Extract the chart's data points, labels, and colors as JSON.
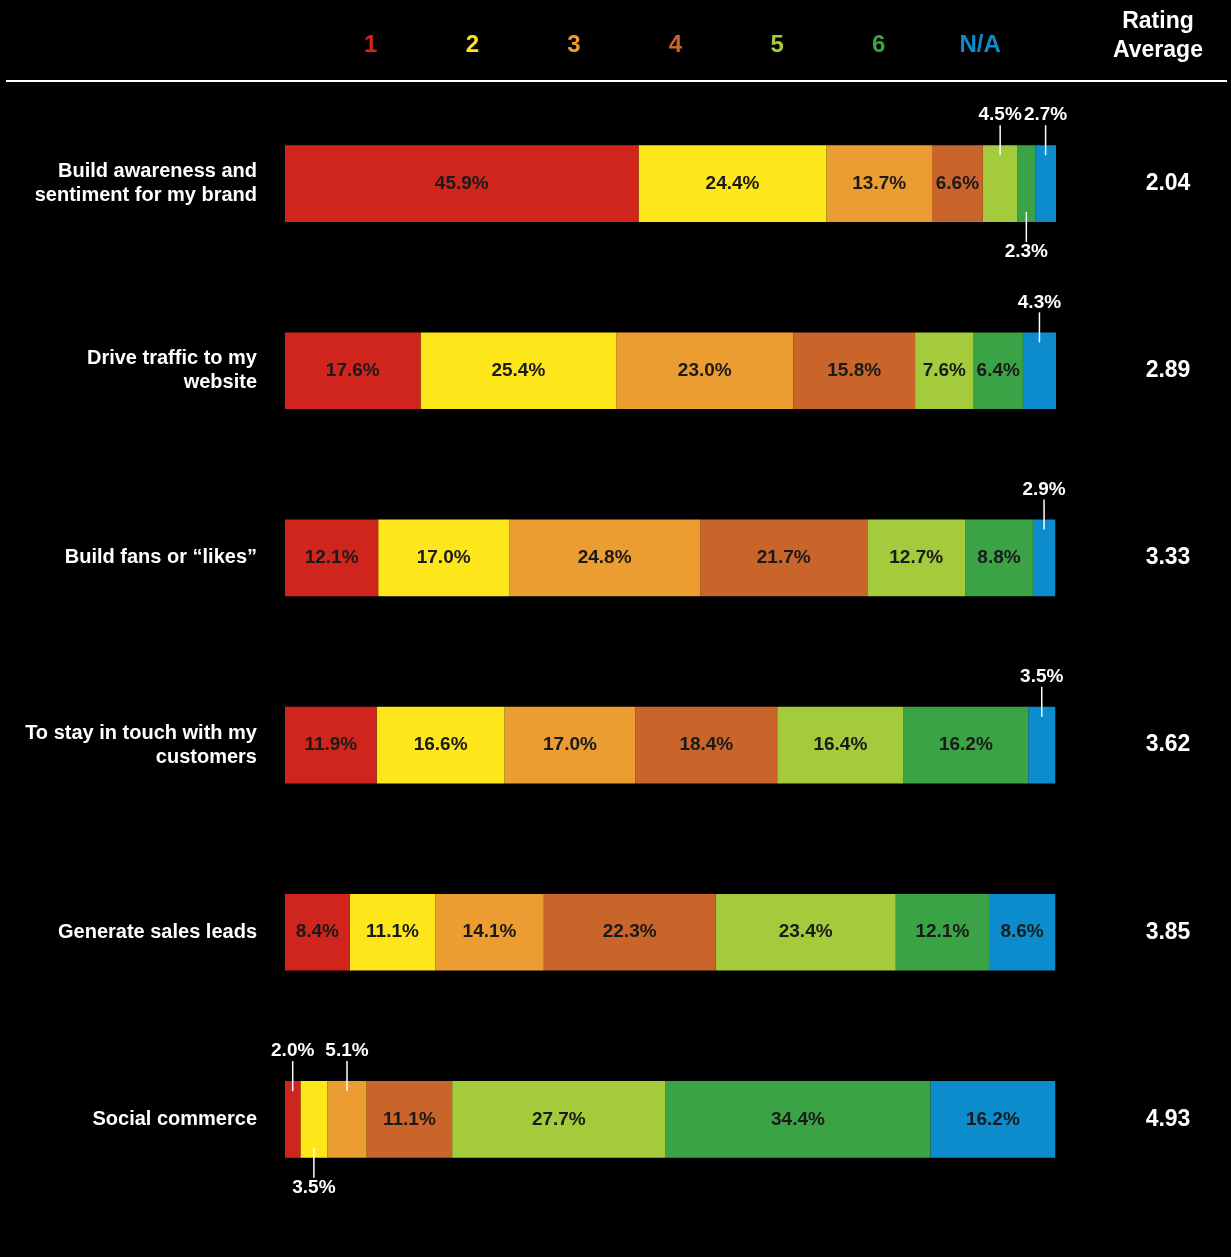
{
  "chart_data": {
    "type": "bar",
    "orientation": "horizontal",
    "stacked": true,
    "tick_labels": "y",
    "legend": "top",
    "categories": [
      "Build awareness and sentiment for my brand",
      "Drive traffic to my website",
      "Build fans or “likes”",
      "To stay in touch with my customers",
      "Generate sales leads",
      "Social commerce"
    ],
    "series": [
      {
        "name": "1",
        "color": "#d0251c",
        "values": [
          45.9,
          17.6,
          12.1,
          11.9,
          8.4,
          2.0
        ],
        "value_labels": [
          "45.9%",
          "17.6%",
          "12.1%",
          "11.9%",
          "8.4%",
          "2.0%"
        ]
      },
      {
        "name": "2",
        "color": "#fde619",
        "values": [
          24.4,
          25.4,
          17.0,
          16.6,
          11.1,
          3.5
        ],
        "value_labels": [
          "24.4%",
          "25.4%",
          "17.0%",
          "16.6%",
          "11.1%",
          "3.5%"
        ]
      },
      {
        "name": "3",
        "color": "#eb9d31",
        "values": [
          13.7,
          23.0,
          24.8,
          17.0,
          14.1,
          5.1
        ],
        "value_labels": [
          "13.7%",
          "23.0%",
          "24.8%",
          "17.0%",
          "14.1%",
          "5.1%"
        ]
      },
      {
        "name": "4",
        "color": "#c9642a",
        "values": [
          6.6,
          15.8,
          21.7,
          18.4,
          22.3,
          11.1
        ],
        "value_labels": [
          "6.6%",
          "15.8%",
          "21.7%",
          "18.4%",
          "22.3%",
          "11.1%"
        ]
      },
      {
        "name": "5",
        "color": "#a3cb3b",
        "values": [
          4.5,
          7.6,
          12.7,
          16.4,
          23.4,
          27.7
        ],
        "value_labels": [
          "4.5%",
          "7.6%",
          "12.7%",
          "16.4%",
          "23.4%",
          "27.7%"
        ]
      },
      {
        "name": "6",
        "color": "#3aa345",
        "values": [
          2.3,
          6.4,
          8.8,
          16.2,
          12.1,
          34.4
        ],
        "value_labels": [
          "2.3%",
          "6.4%",
          "8.8%",
          "16.2%",
          "12.1%",
          "34.4%"
        ]
      },
      {
        "name": "N/A",
        "color": "#0c8ccc",
        "values": [
          2.7,
          4.3,
          2.9,
          3.5,
          8.6,
          16.2
        ],
        "value_labels": [
          "2.7%",
          "4.3%",
          "2.9%",
          "3.5%",
          "8.6%",
          "16.2%"
        ]
      }
    ],
    "annotations": [
      "Rating Average",
      "2.04",
      "2.89",
      "3.33",
      "3.62",
      "3.85",
      "4.93"
    ]
  }
}
